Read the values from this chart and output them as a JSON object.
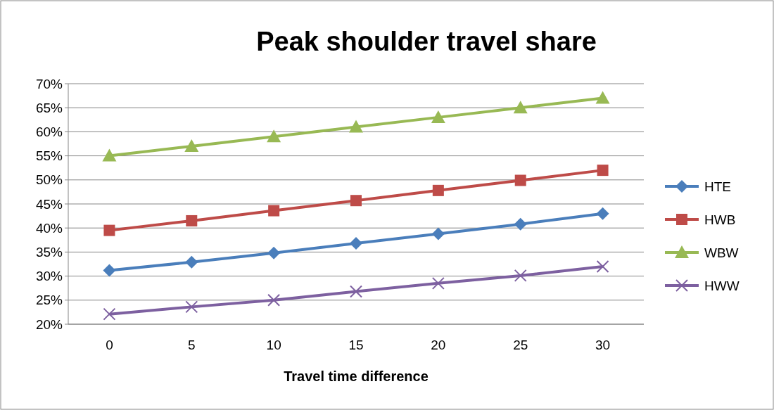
{
  "chart_data": {
    "type": "line",
    "title": "Peak shoulder travel share",
    "xlabel": "Travel time difference",
    "categories": [
      "0",
      "5",
      "10",
      "15",
      "20",
      "25",
      "30"
    ],
    "series": [
      {
        "name": "HTE",
        "color": "#4a7ebb",
        "marker": "diamond",
        "values": [
          31.2,
          32.9,
          34.8,
          36.8,
          38.8,
          40.8,
          43.0
        ]
      },
      {
        "name": "HWB",
        "color": "#be4b48",
        "marker": "square",
        "values": [
          39.5,
          41.5,
          43.6,
          45.7,
          47.8,
          49.9,
          52.0
        ]
      },
      {
        "name": "WBW",
        "color": "#98b954",
        "marker": "triangle",
        "values": [
          55,
          57,
          59,
          61,
          63,
          65,
          67
        ]
      },
      {
        "name": "HWW",
        "color": "#7d60a0",
        "marker": "cross",
        "values": [
          22.1,
          23.6,
          25.0,
          26.8,
          28.5,
          30.1,
          32.0
        ]
      }
    ],
    "ylim": [
      20,
      70
    ],
    "yticks": [
      {
        "value": 20,
        "label": "20%"
      },
      {
        "value": 25,
        "label": "25%"
      },
      {
        "value": 30,
        "label": "30%"
      },
      {
        "value": 35,
        "label": "35%"
      },
      {
        "value": 40,
        "label": "40%"
      },
      {
        "value": 45,
        "label": "45%"
      },
      {
        "value": 50,
        "label": "50%"
      },
      {
        "value": 55,
        "label": "55%"
      },
      {
        "value": 60,
        "label": "60%"
      },
      {
        "value": 65,
        "label": "65%"
      },
      {
        "value": 70,
        "label": "70%"
      }
    ],
    "grid": "y",
    "legend": "right",
    "line_style": "solid"
  }
}
